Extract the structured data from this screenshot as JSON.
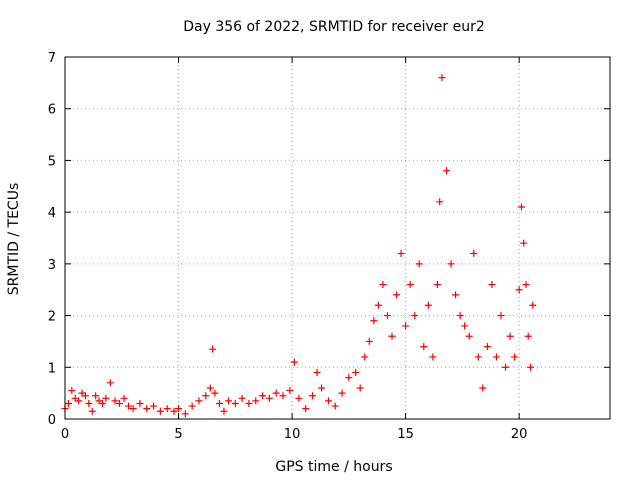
{
  "chart_data": {
    "type": "scatter",
    "title": "Day 356 of 2022, SRMTID for receiver eur2",
    "xlabel": "GPS time / hours",
    "ylabel": "SRMTID / TECUs",
    "xlim": [
      0,
      24
    ],
    "ylim": [
      0,
      7
    ],
    "xticks": [
      0,
      5,
      10,
      15,
      20
    ],
    "yticks": [
      0,
      1,
      2,
      3,
      4,
      5,
      6,
      7
    ],
    "grid": true,
    "marker": "plus",
    "series": [
      {
        "name": "SRMTID",
        "color": "#ff0000",
        "x": [
          0.0,
          0.15,
          0.3,
          0.45,
          0.6,
          0.75,
          0.9,
          1.05,
          1.2,
          1.35,
          1.5,
          1.65,
          1.8,
          2.0,
          2.2,
          2.4,
          2.6,
          2.8,
          3.0,
          3.3,
          3.6,
          3.9,
          4.2,
          4.5,
          4.8,
          5.0,
          5.3,
          5.6,
          5.9,
          6.2,
          6.4,
          6.5,
          6.6,
          6.8,
          7.0,
          7.2,
          7.5,
          7.8,
          8.1,
          8.4,
          8.7,
          9.0,
          9.3,
          9.6,
          9.9,
          10.1,
          10.3,
          10.6,
          10.9,
          11.1,
          11.3,
          11.6,
          11.9,
          12.2,
          12.5,
          12.8,
          13.0,
          13.2,
          13.4,
          13.6,
          13.8,
          14.0,
          14.2,
          14.4,
          14.6,
          14.8,
          15.0,
          15.2,
          15.4,
          15.6,
          15.8,
          16.0,
          16.2,
          16.4,
          16.5,
          16.6,
          16.8,
          17.0,
          17.2,
          17.4,
          17.6,
          17.8,
          18.0,
          18.2,
          18.4,
          18.6,
          18.8,
          19.0,
          19.2,
          19.4,
          19.6,
          19.8,
          20.0,
          20.1,
          20.2,
          20.3,
          20.4,
          20.5,
          20.6
        ],
        "y": [
          0.2,
          0.3,
          0.55,
          0.4,
          0.35,
          0.5,
          0.45,
          0.3,
          0.15,
          0.45,
          0.35,
          0.3,
          0.4,
          0.7,
          0.35,
          0.3,
          0.4,
          0.25,
          0.2,
          0.3,
          0.2,
          0.25,
          0.15,
          0.2,
          0.15,
          0.2,
          0.1,
          0.25,
          0.35,
          0.45,
          0.6,
          1.35,
          0.5,
          0.3,
          0.15,
          0.35,
          0.3,
          0.4,
          0.3,
          0.35,
          0.45,
          0.4,
          0.5,
          0.45,
          0.55,
          1.1,
          0.4,
          0.2,
          0.45,
          0.9,
          0.6,
          0.35,
          0.25,
          0.5,
          0.8,
          0.9,
          0.6,
          1.2,
          1.5,
          1.9,
          2.2,
          2.6,
          2.0,
          1.6,
          2.4,
          3.2,
          1.8,
          2.6,
          2.0,
          3.0,
          1.4,
          2.2,
          1.2,
          2.6,
          4.2,
          6.6,
          4.8,
          3.0,
          2.4,
          2.0,
          1.8,
          1.6,
          3.2,
          1.2,
          0.6,
          1.4,
          2.6,
          1.2,
          2.0,
          1.0,
          1.6,
          1.2,
          2.5,
          4.1,
          3.4,
          2.6,
          1.6,
          1.0,
          2.2
        ]
      }
    ]
  }
}
